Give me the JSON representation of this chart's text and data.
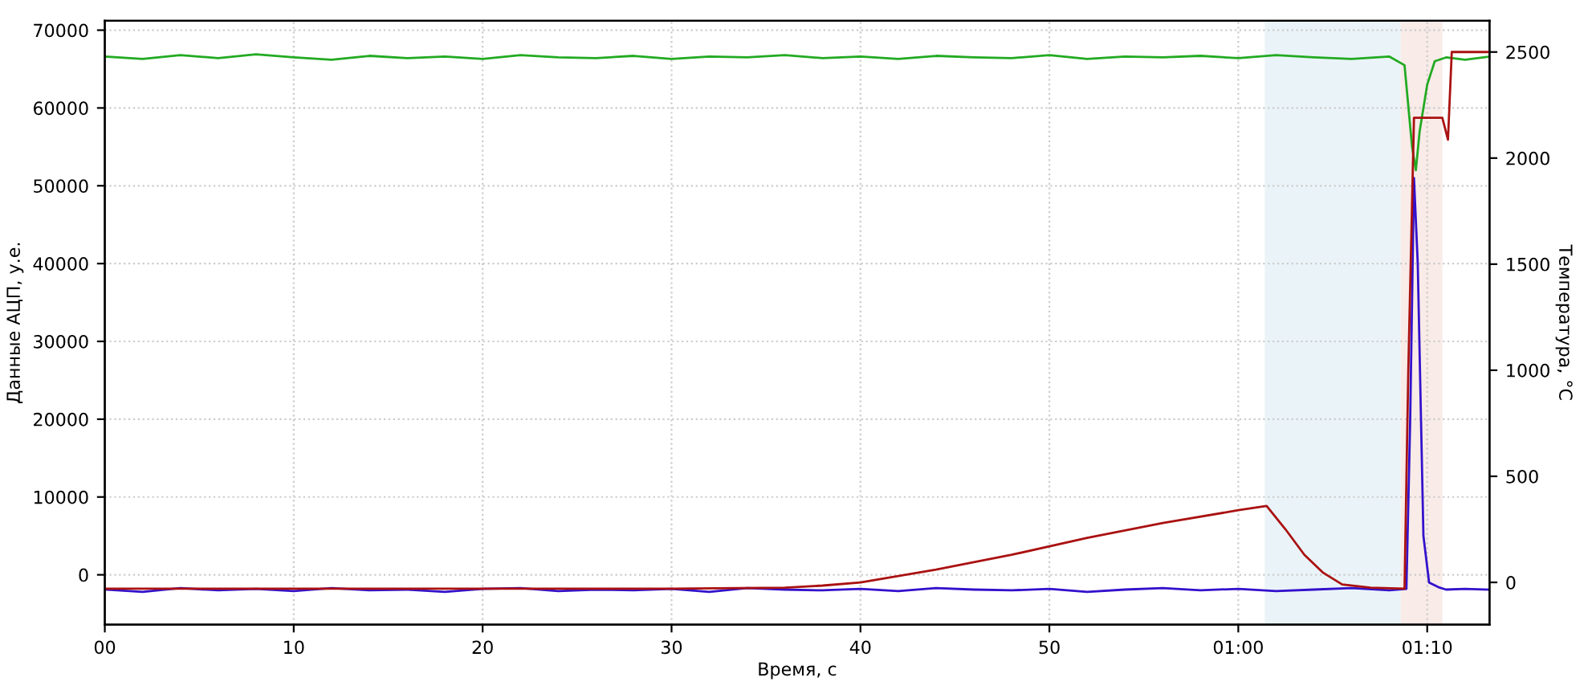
{
  "chart_data": {
    "type": "line",
    "xlabel": "Время, с",
    "ylabel": "Данные АЦП, у.е.",
    "y2label": "Температура, °С",
    "xlim": [
      0,
      73.3
    ],
    "xticks": [
      {
        "value": 0,
        "label": "00"
      },
      10,
      20,
      30,
      40,
      50,
      {
        "value": 60,
        "label": "01:00"
      },
      {
        "value": 70,
        "label": "01:10"
      }
    ],
    "ylim": [
      -6400,
      71200
    ],
    "yticks": [
      0,
      10000,
      20000,
      30000,
      40000,
      50000,
      60000,
      70000
    ],
    "y2lim": [
      -199,
      2647
    ],
    "y2ticks": [
      0,
      500,
      1000,
      1500,
      2000,
      2500
    ],
    "grid": true,
    "marker": "none",
    "line_style": "solid",
    "bands": [
      {
        "axis": "x",
        "from": 61.4,
        "to": 68.6,
        "color": "#eaf4f8"
      },
      {
        "axis": "x",
        "from": 68.6,
        "to": 70.8,
        "color": "#f8ebe8"
      }
    ],
    "series": [
      {
        "color": "#22aa22",
        "x": [
          0,
          2,
          4,
          6,
          8,
          10,
          12,
          14,
          16,
          18,
          20,
          22,
          24,
          26,
          28,
          30,
          32,
          34,
          36,
          38,
          40,
          42,
          44,
          46,
          48,
          50,
          52,
          54,
          56,
          58,
          60,
          62,
          64,
          66,
          68,
          68.8,
          69.2,
          69.4,
          69.6,
          70.0,
          70.4,
          71,
          72,
          73.3
        ],
        "values": [
          66600,
          66300,
          66800,
          66400,
          66900,
          66500,
          66200,
          66700,
          66400,
          66600,
          66300,
          66800,
          66500,
          66400,
          66700,
          66300,
          66600,
          66500,
          66800,
          66400,
          66600,
          66300,
          66700,
          66500,
          66400,
          66800,
          66300,
          66600,
          66500,
          66700,
          66400,
          66800,
          66500,
          66300,
          66600,
          65500,
          55000,
          52000,
          57000,
          63000,
          66000,
          66500,
          66200,
          66600
        ]
      },
      {
        "color": "#3311cc",
        "x": [
          0,
          2,
          4,
          6,
          8,
          10,
          12,
          14,
          16,
          18,
          20,
          22,
          24,
          26,
          28,
          30,
          32,
          34,
          36,
          38,
          40,
          42,
          44,
          46,
          48,
          50,
          52,
          54,
          56,
          58,
          60,
          62,
          64,
          66,
          68,
          68.9,
          69.1,
          69.3,
          69.5,
          69.8,
          70.1,
          70.6,
          71,
          72,
          73.3
        ],
        "values": [
          -1900,
          -2200,
          -1700,
          -2000,
          -1800,
          -2100,
          -1700,
          -2000,
          -1900,
          -2200,
          -1800,
          -1700,
          -2100,
          -1900,
          -2000,
          -1800,
          -2200,
          -1700,
          -1900,
          -2000,
          -1800,
          -2100,
          -1700,
          -1900,
          -2000,
          -1800,
          -2200,
          -1900,
          -1700,
          -2000,
          -1800,
          -2100,
          -1900,
          -1700,
          -2000,
          -1800,
          20000,
          51000,
          40000,
          5000,
          -1000,
          -1600,
          -1900,
          -1800,
          -1900
        ]
      },
      {
        "color": "#aa1111",
        "axis": "y2",
        "x": [
          0,
          10,
          20,
          30,
          36,
          38,
          40,
          44,
          48,
          52,
          56,
          60,
          61.5,
          62.5,
          63.5,
          64.5,
          65.5,
          67,
          68.8,
          69.0,
          69.3,
          69.5,
          70.8,
          71.1,
          71.3,
          72,
          73.3
        ],
        "values": [
          -30,
          -30,
          -30,
          -30,
          -25,
          -15,
          0,
          60,
          130,
          210,
          280,
          340,
          360,
          250,
          130,
          45,
          -10,
          -25,
          -30,
          1000,
          2190,
          2190,
          2190,
          2087,
          2500,
          2500,
          2500
        ]
      }
    ]
  }
}
